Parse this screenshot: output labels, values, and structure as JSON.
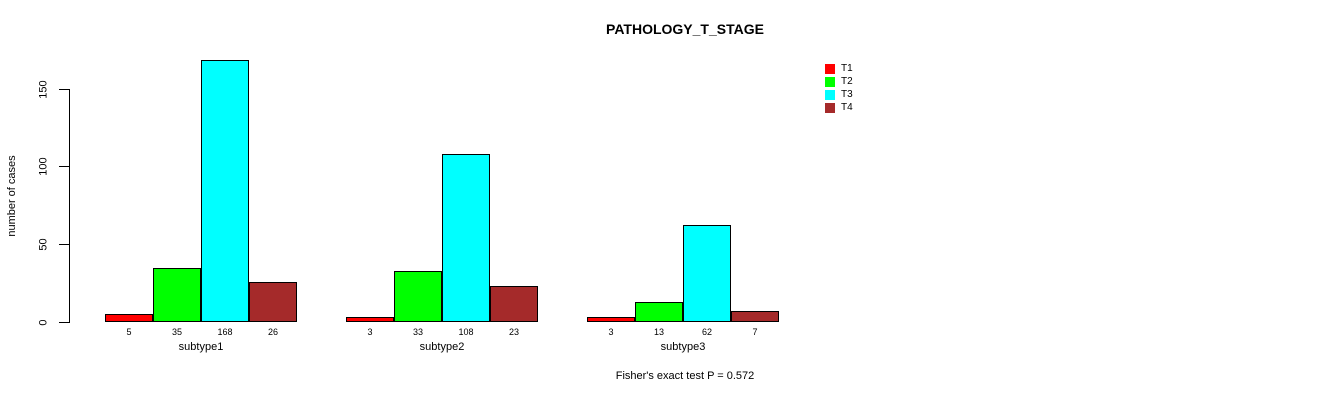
{
  "chart_data": {
    "type": "bar",
    "title": "PATHOLOGY_T_STAGE",
    "xlabel": "",
    "ylabel": "number of cases",
    "categories": [
      "subtype1",
      "subtype2",
      "subtype3"
    ],
    "series": [
      {
        "name": "T1",
        "color": "#FF0000",
        "values": [
          5,
          3,
          3
        ]
      },
      {
        "name": "T2",
        "color": "#00FF00",
        "values": [
          35,
          33,
          13
        ]
      },
      {
        "name": "T3",
        "color": "#00FFFF",
        "values": [
          168,
          108,
          62
        ]
      },
      {
        "name": "T4",
        "color": "#A52A2A",
        "values": [
          26,
          23,
          7
        ]
      }
    ],
    "bar_value_labels": [
      [
        "5",
        "35",
        "168",
        "26"
      ],
      [
        "3",
        "33",
        "108",
        "23"
      ],
      [
        "3",
        "13",
        "62",
        "7"
      ]
    ],
    "yticks": [
      0,
      50,
      100,
      150
    ],
    "ylim": [
      0,
      168
    ],
    "grid": false,
    "legend_position": "top-right",
    "annotation": "Fisher's exact test P = 0.572"
  }
}
